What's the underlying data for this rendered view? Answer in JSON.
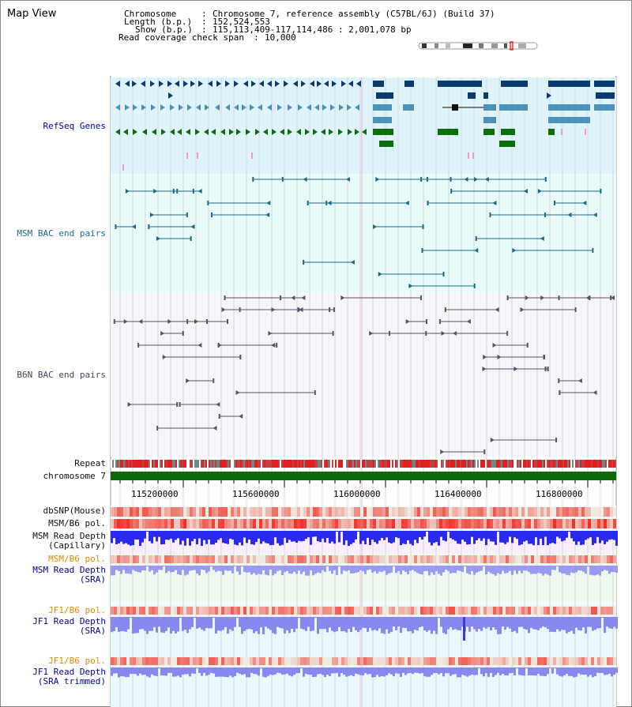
{
  "title": "Map View",
  "info": {
    "chromosome_key": "Chromosome",
    "chromosome_value": "Chromosome 7, reference assembly (C57BL/6J) (Build 37)",
    "length_key": "Length (b.p.)",
    "length_value": "152,524,553",
    "show_key": "Show (b.p.)",
    "show_value": "115,113,409-117,114,486 : 2,001,078 bp",
    "coverage_key": "Read coverage check span",
    "coverage_value": "10,000"
  },
  "tracks": {
    "refseq": "RefSeq Genes",
    "msm_bac": "MSM BAC end pairs",
    "b6n_bac": "B6N BAC end pairs",
    "repeat": "Repeat",
    "chromosome": "chromosome 7",
    "dbsnp": "dbSNP(Mouse)",
    "msm_b6_pol": "MSM/B6 pol.",
    "msm_depth_cap_1": "MSM Read Depth",
    "msm_depth_cap_2": "(Capillary)",
    "msm_b6_pol_2": "MSM/B6 pol.",
    "msm_depth_sra_1": "MSM Read Depth",
    "msm_depth_sra_2": "(SRA)",
    "jf1_b6_pol": "JF1/B6 pol.",
    "jf1_depth_sra_1": "JF1 Read Depth",
    "jf1_depth_sra_2": "(SRA)",
    "jf1_b6_pol_2": "JF1/B6 pol.",
    "jf1_depth_trim_1": "JF1 Read Depth",
    "jf1_depth_trim_2": "(SRA trimmed)"
  },
  "axis_ticks": [
    "115200000",
    "115600000",
    "116000000",
    "116400000",
    "116800000"
  ],
  "colors": {
    "refseq_bg": "#dff3fb",
    "msm_bac_bg": "#e8fbf8",
    "b6n_bac_bg": "#f5f5fa",
    "gene_navy": "#0a3a6e",
    "gene_teal": "#4a90b8",
    "gene_green": "#0b6e0b",
    "chrom_bar": "#0a6a0a",
    "repeat_red": "#e02020",
    "depth_blue": "#3a3aee",
    "depth_light": "#8888ff"
  }
}
